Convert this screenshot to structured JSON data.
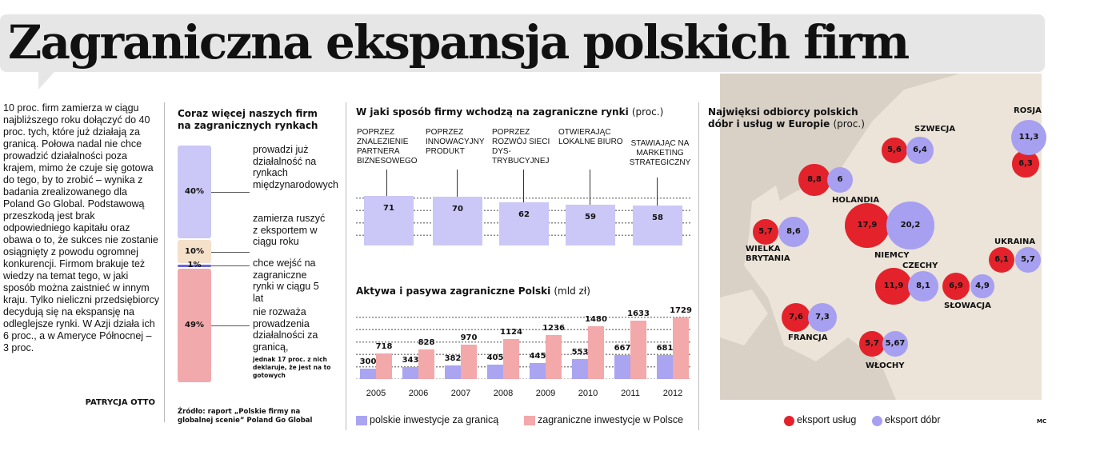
{
  "title": "Zagraniczna ekspansja polskich firm",
  "article": {
    "text": "10 proc. firm zamierza w ciągu najbliższego roku dołączyć do 40 proc. tych, które już działają za granicą. Połowa nadal nie chce prowadzić działalności poza krajem, mimo że czuje się gotowa do tego, by to zrobić – wynika z badania zrealizowanego dla Poland Go Global. Podstawową przeszkodą jest brak odpowiedniego kapitału oraz obawa o to, że sukces nie zostanie osiągnięty z powodu ogromnej konkurencji. Firmom brakuje też wiedzy na temat tego, w jaki sposób można zaistnieć w innym kraju. Tylko nieliczni przedsiębiorcy decydują się na ekspansję na odleglejsze rynki. W Azji działa ich 6 proc., a w Ameryce Północnej – 3 proc.",
    "author": "PATRYCJA OTTO"
  },
  "chart_data": [
    {
      "type": "stacked_bar",
      "title": "Coraz więcej naszych firm na zagranicznych rynkach",
      "categories": [
        "prowadzi już działalność na rynkach międzynarodowych",
        "zamierza ruszyć z eksportem w ciągu roku",
        "chce wejść na zagraniczne rynki w ciągu 5 lat",
        "nie rozważa prowadzenia działalności za granicą,"
      ],
      "values": [
        40,
        10,
        1,
        49
      ],
      "value_labels": [
        "40%",
        "10%",
        "1%",
        "49%"
      ],
      "colors": [
        "#cbc7f6",
        "#f5e0c9",
        "#6b63e0",
        "#f1a9ac"
      ],
      "note": "jednak 17 proc. z nich deklaruje, że jest na to gotowych",
      "source": "Źródło: raport „Polskie firmy na globalnej scenie” Poland Go Global"
    },
    {
      "type": "bar",
      "title": "W jaki sposób firmy wchodzą na zagraniczne rynki",
      "subtitle": "(proc.)",
      "categories": [
        "POPRZEZ ZNALEZIENIE PARTNERA BIZNESOWEGO",
        "POPRZEZ INNOWACYJNY PRODUKT",
        "POPRZEZ ROZWÓJ SIECI DYS-TRYBUCYJNEJ",
        "OTWIERAJĄC LOKALNE BIURO",
        "STAWIAJĄC NA MARKETING STRATEGICZNY"
      ],
      "values": [
        71,
        70,
        62,
        59,
        58
      ],
      "color": "#cbc7f6"
    },
    {
      "type": "grouped_bar",
      "title": "Aktywa i pasywa zagraniczne Polski",
      "subtitle": "(mld zł)",
      "categories": [
        "2005",
        "2006",
        "2007",
        "2008",
        "2009",
        "2010",
        "2011",
        "2012"
      ],
      "series": [
        {
          "name": "polskie inwestycje za granicą",
          "color": "#aaa4f1",
          "values": [
            300,
            343,
            382,
            405,
            445,
            553,
            667,
            681
          ]
        },
        {
          "name": "zagraniczne inwestycje w Polsce",
          "color": "#f3a8aa",
          "values": [
            718,
            828,
            970,
            1124,
            1236,
            1480,
            1633,
            1729
          ]
        }
      ]
    },
    {
      "type": "bubble_map",
      "title": "Najwięksi odbiorcy polskich dóbr i usług w Europie",
      "subtitle": "(proc.)",
      "categories": [
        "SZWECJA",
        "HOLANDIA",
        "WIELKA BRYTANIA",
        "NIEMCY",
        "UKRAINA",
        "CZECHY",
        "SŁOWACJA",
        "FRANCJA",
        "WŁOCHY",
        "ROSJA"
      ],
      "series": [
        {
          "name": "eksport usług",
          "color": "#e4222b",
          "values": [
            5.6,
            8.8,
            5.7,
            17.9,
            6.1,
            11.9,
            6.9,
            7.6,
            5.7,
            6.3
          ],
          "value_labels": [
            "5,6",
            "8,8",
            "5,7",
            "17,9",
            "6,1",
            "11,9",
            "6,9",
            "7,6",
            "5,7",
            "6,3"
          ]
        },
        {
          "name": "eksport dóbr",
          "color": "#a79ff0",
          "values": [
            6.4,
            6,
            8.6,
            20.2,
            5.7,
            8.1,
            4.9,
            7.3,
            5.67,
            11.3
          ],
          "value_labels": [
            "6,4",
            "6",
            "8,6",
            "20,2",
            "5,7",
            "8,1",
            "4,9",
            "7,3",
            "5,67",
            "11,3"
          ]
        }
      ],
      "credit": "MC"
    }
  ]
}
